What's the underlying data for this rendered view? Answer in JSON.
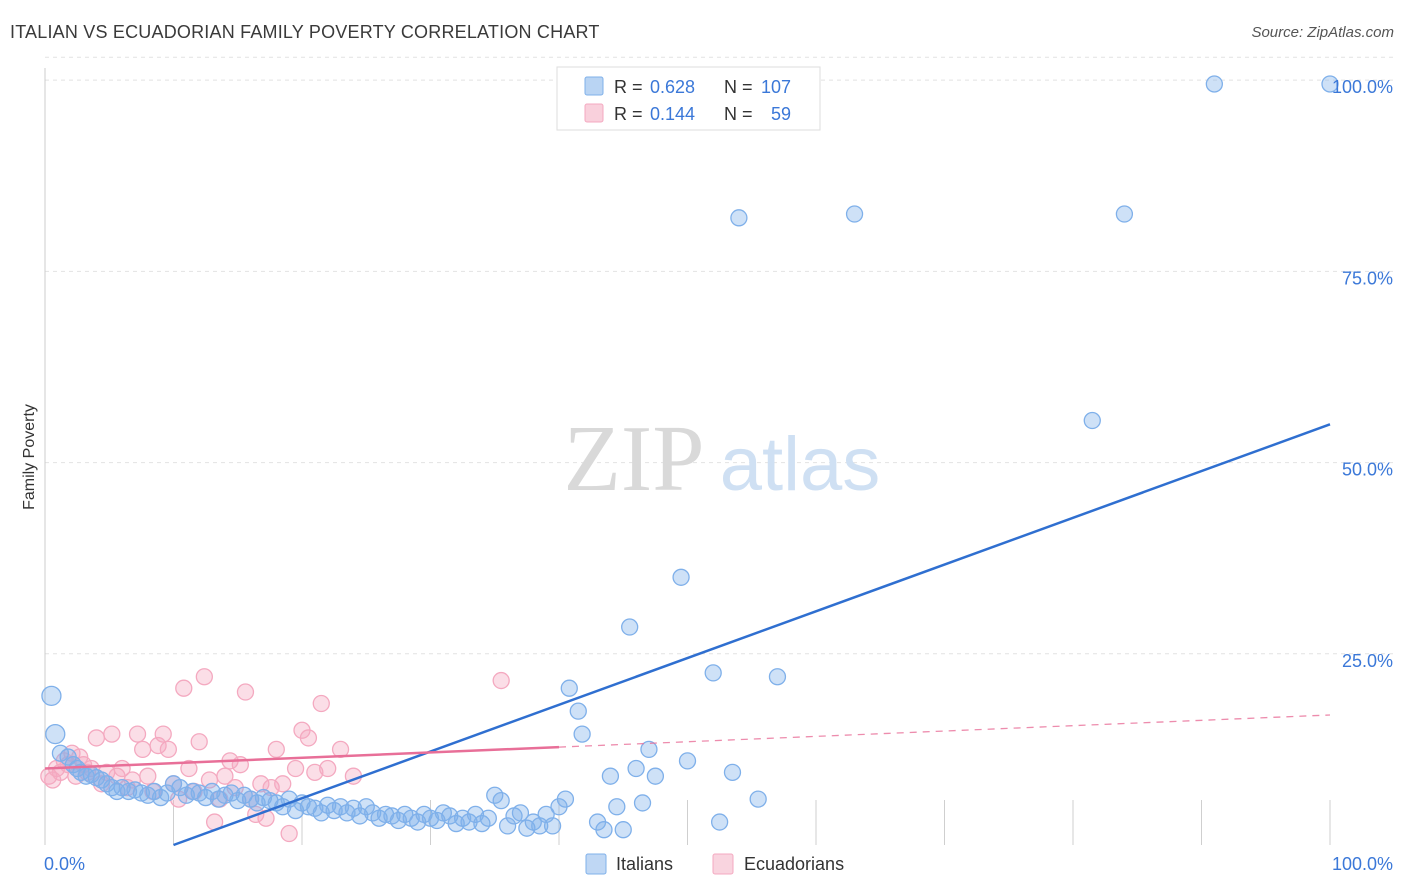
{
  "title": "ITALIAN VS ECUADORIAN FAMILY POVERTY CORRELATION CHART",
  "source": "Source: ZipAtlas.com",
  "watermark": {
    "zip": "ZIP",
    "atlas": "atlas"
  },
  "legend_stats": [
    {
      "r_label": "R =",
      "r_value": "0.628",
      "n_label": "N =",
      "n_value": "107",
      "color": "#7fb0ea"
    },
    {
      "r_label": "R =",
      "r_value": "0.144",
      "n_label": "N =",
      "n_value": "59",
      "color": "#f4a9c0"
    }
  ],
  "chart_data": {
    "type": "scatter",
    "title": "ITALIAN VS ECUADORIAN FAMILY POVERTY CORRELATION CHART",
    "xlabel": "",
    "ylabel": "Family Poverty",
    "xlim": [
      0,
      100
    ],
    "ylim": [
      0,
      103
    ],
    "x_tick_labels": [
      {
        "value": 0,
        "label": "0.0%"
      },
      {
        "value": 100,
        "label": "100.0%"
      }
    ],
    "y_tick_labels": [
      {
        "value": 25,
        "label": "25.0%"
      },
      {
        "value": 50,
        "label": "50.0%"
      },
      {
        "value": 75,
        "label": "75.0%"
      },
      {
        "value": 100,
        "label": "100.0%"
      }
    ],
    "grid": true,
    "series": [
      {
        "name": "Italians",
        "color": "#7fb0ea",
        "line_color": "#2f6fd0",
        "trend": {
          "x0": 10,
          "y0": 0,
          "x1": 100,
          "y1": 55.0,
          "dashed_from": null
        },
        "points": [
          [
            0.5,
            19.5
          ],
          [
            0.8,
            14.5
          ],
          [
            1.2,
            12.0
          ],
          [
            1.8,
            11.5
          ],
          [
            2.2,
            10.5
          ],
          [
            2.5,
            10.0
          ],
          [
            2.8,
            9.5
          ],
          [
            3.2,
            9.0
          ],
          [
            3.6,
            9.2
          ],
          [
            4.0,
            8.8
          ],
          [
            4.4,
            8.5
          ],
          [
            4.8,
            8.0
          ],
          [
            5.2,
            7.5
          ],
          [
            5.6,
            7.0
          ],
          [
            6.0,
            7.5
          ],
          [
            6.5,
            7.0
          ],
          [
            7.0,
            7.2
          ],
          [
            7.5,
            6.8
          ],
          [
            8.0,
            6.5
          ],
          [
            8.5,
            7.0
          ],
          [
            9.0,
            6.2
          ],
          [
            9.5,
            6.8
          ],
          [
            10.0,
            8.0
          ],
          [
            10.5,
            7.5
          ],
          [
            11.0,
            6.5
          ],
          [
            11.5,
            7.0
          ],
          [
            12.0,
            6.8
          ],
          [
            12.5,
            6.2
          ],
          [
            13.0,
            7.0
          ],
          [
            13.5,
            6.0
          ],
          [
            14.0,
            6.5
          ],
          [
            14.5,
            6.8
          ],
          [
            15.0,
            5.8
          ],
          [
            15.5,
            6.5
          ],
          [
            16.0,
            6.0
          ],
          [
            16.5,
            5.5
          ],
          [
            17.0,
            6.2
          ],
          [
            17.5,
            5.8
          ],
          [
            18.0,
            5.5
          ],
          [
            18.5,
            5.0
          ],
          [
            19.0,
            6.0
          ],
          [
            19.5,
            4.5
          ],
          [
            20.0,
            5.5
          ],
          [
            20.5,
            5.0
          ],
          [
            21.0,
            4.8
          ],
          [
            21.5,
            4.2
          ],
          [
            22.0,
            5.2
          ],
          [
            22.5,
            4.5
          ],
          [
            23.0,
            5.0
          ],
          [
            23.5,
            4.2
          ],
          [
            24.0,
            4.8
          ],
          [
            24.5,
            3.8
          ],
          [
            25.0,
            5.0
          ],
          [
            25.5,
            4.2
          ],
          [
            26.0,
            3.5
          ],
          [
            26.5,
            4.0
          ],
          [
            27.0,
            3.8
          ],
          [
            27.5,
            3.2
          ],
          [
            28.0,
            4.0
          ],
          [
            28.5,
            3.5
          ],
          [
            29.0,
            3.0
          ],
          [
            29.5,
            4.0
          ],
          [
            30.0,
            3.5
          ],
          [
            30.5,
            3.2
          ],
          [
            31.0,
            4.2
          ],
          [
            31.5,
            3.8
          ],
          [
            32.0,
            2.8
          ],
          [
            32.5,
            3.5
          ],
          [
            33.0,
            3.0
          ],
          [
            33.5,
            4.0
          ],
          [
            34.0,
            2.8
          ],
          [
            34.5,
            3.5
          ],
          [
            35.0,
            6.5
          ],
          [
            35.5,
            5.8
          ],
          [
            36.0,
            2.5
          ],
          [
            36.5,
            3.8
          ],
          [
            37.0,
            4.2
          ],
          [
            37.5,
            2.2
          ],
          [
            38.0,
            3.0
          ],
          [
            38.5,
            2.5
          ],
          [
            39.0,
            4.0
          ],
          [
            39.5,
            2.5
          ],
          [
            40.0,
            5.0
          ],
          [
            40.5,
            6.0
          ],
          [
            40.8,
            20.5
          ],
          [
            41.5,
            17.5
          ],
          [
            41.8,
            14.5
          ],
          [
            43.0,
            3.0
          ],
          [
            43.5,
            2.0
          ],
          [
            44.0,
            9.0
          ],
          [
            44.5,
            5.0
          ],
          [
            45.0,
            2.0
          ],
          [
            45.5,
            28.5
          ],
          [
            46.0,
            10.0
          ],
          [
            46.5,
            5.5
          ],
          [
            47.0,
            12.5
          ],
          [
            47.5,
            9.0
          ],
          [
            49.5,
            35.0
          ],
          [
            50.0,
            11.0
          ],
          [
            52.0,
            22.5
          ],
          [
            52.5,
            3.0
          ],
          [
            53.5,
            9.5
          ],
          [
            54.0,
            82.0
          ],
          [
            55.5,
            6.0
          ],
          [
            57.0,
            22.0
          ],
          [
            63.0,
            82.5
          ],
          [
            84.0,
            82.5
          ],
          [
            81.5,
            55.5
          ],
          [
            91.0,
            99.5
          ],
          [
            100.0,
            99.5
          ]
        ]
      },
      {
        "name": "Ecuadorians",
        "color": "#f4a9c0",
        "line_color": "#e86f98",
        "trend": {
          "x0": 0,
          "y0": 10.0,
          "x1": 100,
          "y1": 17.0,
          "dashed_from": 40
        },
        "points": [
          [
            0.3,
            9.0
          ],
          [
            0.6,
            8.5
          ],
          [
            0.9,
            10.0
          ],
          [
            1.2,
            9.5
          ],
          [
            1.5,
            11.0
          ],
          [
            1.8,
            10.5
          ],
          [
            2.1,
            12.0
          ],
          [
            2.4,
            9.0
          ],
          [
            2.7,
            11.5
          ],
          [
            3.0,
            10.5
          ],
          [
            3.3,
            9.5
          ],
          [
            3.6,
            10.0
          ],
          [
            4.0,
            14.0
          ],
          [
            4.4,
            8.0
          ],
          [
            4.8,
            9.5
          ],
          [
            5.2,
            14.5
          ],
          [
            5.6,
            9.0
          ],
          [
            6.0,
            10.0
          ],
          [
            6.4,
            7.5
          ],
          [
            6.8,
            8.5
          ],
          [
            7.2,
            14.5
          ],
          [
            7.6,
            12.5
          ],
          [
            8.0,
            9.0
          ],
          [
            8.4,
            7.0
          ],
          [
            8.8,
            13.0
          ],
          [
            9.2,
            14.5
          ],
          [
            9.6,
            12.5
          ],
          [
            10.0,
            8.0
          ],
          [
            10.4,
            6.0
          ],
          [
            10.8,
            20.5
          ],
          [
            11.2,
            10.0
          ],
          [
            11.6,
            7.0
          ],
          [
            12.0,
            13.5
          ],
          [
            12.4,
            22.0
          ],
          [
            12.8,
            8.5
          ],
          [
            13.2,
            3.0
          ],
          [
            13.6,
            6.0
          ],
          [
            14.0,
            9.0
          ],
          [
            14.4,
            11.0
          ],
          [
            14.8,
            7.5
          ],
          [
            15.2,
            10.5
          ],
          [
            15.6,
            20.0
          ],
          [
            16.0,
            6.0
          ],
          [
            16.4,
            4.0
          ],
          [
            16.8,
            8.0
          ],
          [
            17.2,
            3.5
          ],
          [
            17.6,
            7.5
          ],
          [
            18.0,
            12.5
          ],
          [
            18.5,
            8.0
          ],
          [
            19.0,
            1.5
          ],
          [
            19.5,
            10.0
          ],
          [
            20.0,
            15.0
          ],
          [
            20.5,
            14.0
          ],
          [
            21.0,
            9.5
          ],
          [
            21.5,
            18.5
          ],
          [
            22.0,
            10.0
          ],
          [
            23.0,
            12.5
          ],
          [
            24.0,
            9.0
          ],
          [
            35.5,
            21.5
          ]
        ]
      }
    ]
  },
  "bottom_legend": [
    {
      "label": "Italians",
      "color": "#7fb0ea"
    },
    {
      "label": "Ecuadorians",
      "color": "#f4a9c0"
    }
  ]
}
